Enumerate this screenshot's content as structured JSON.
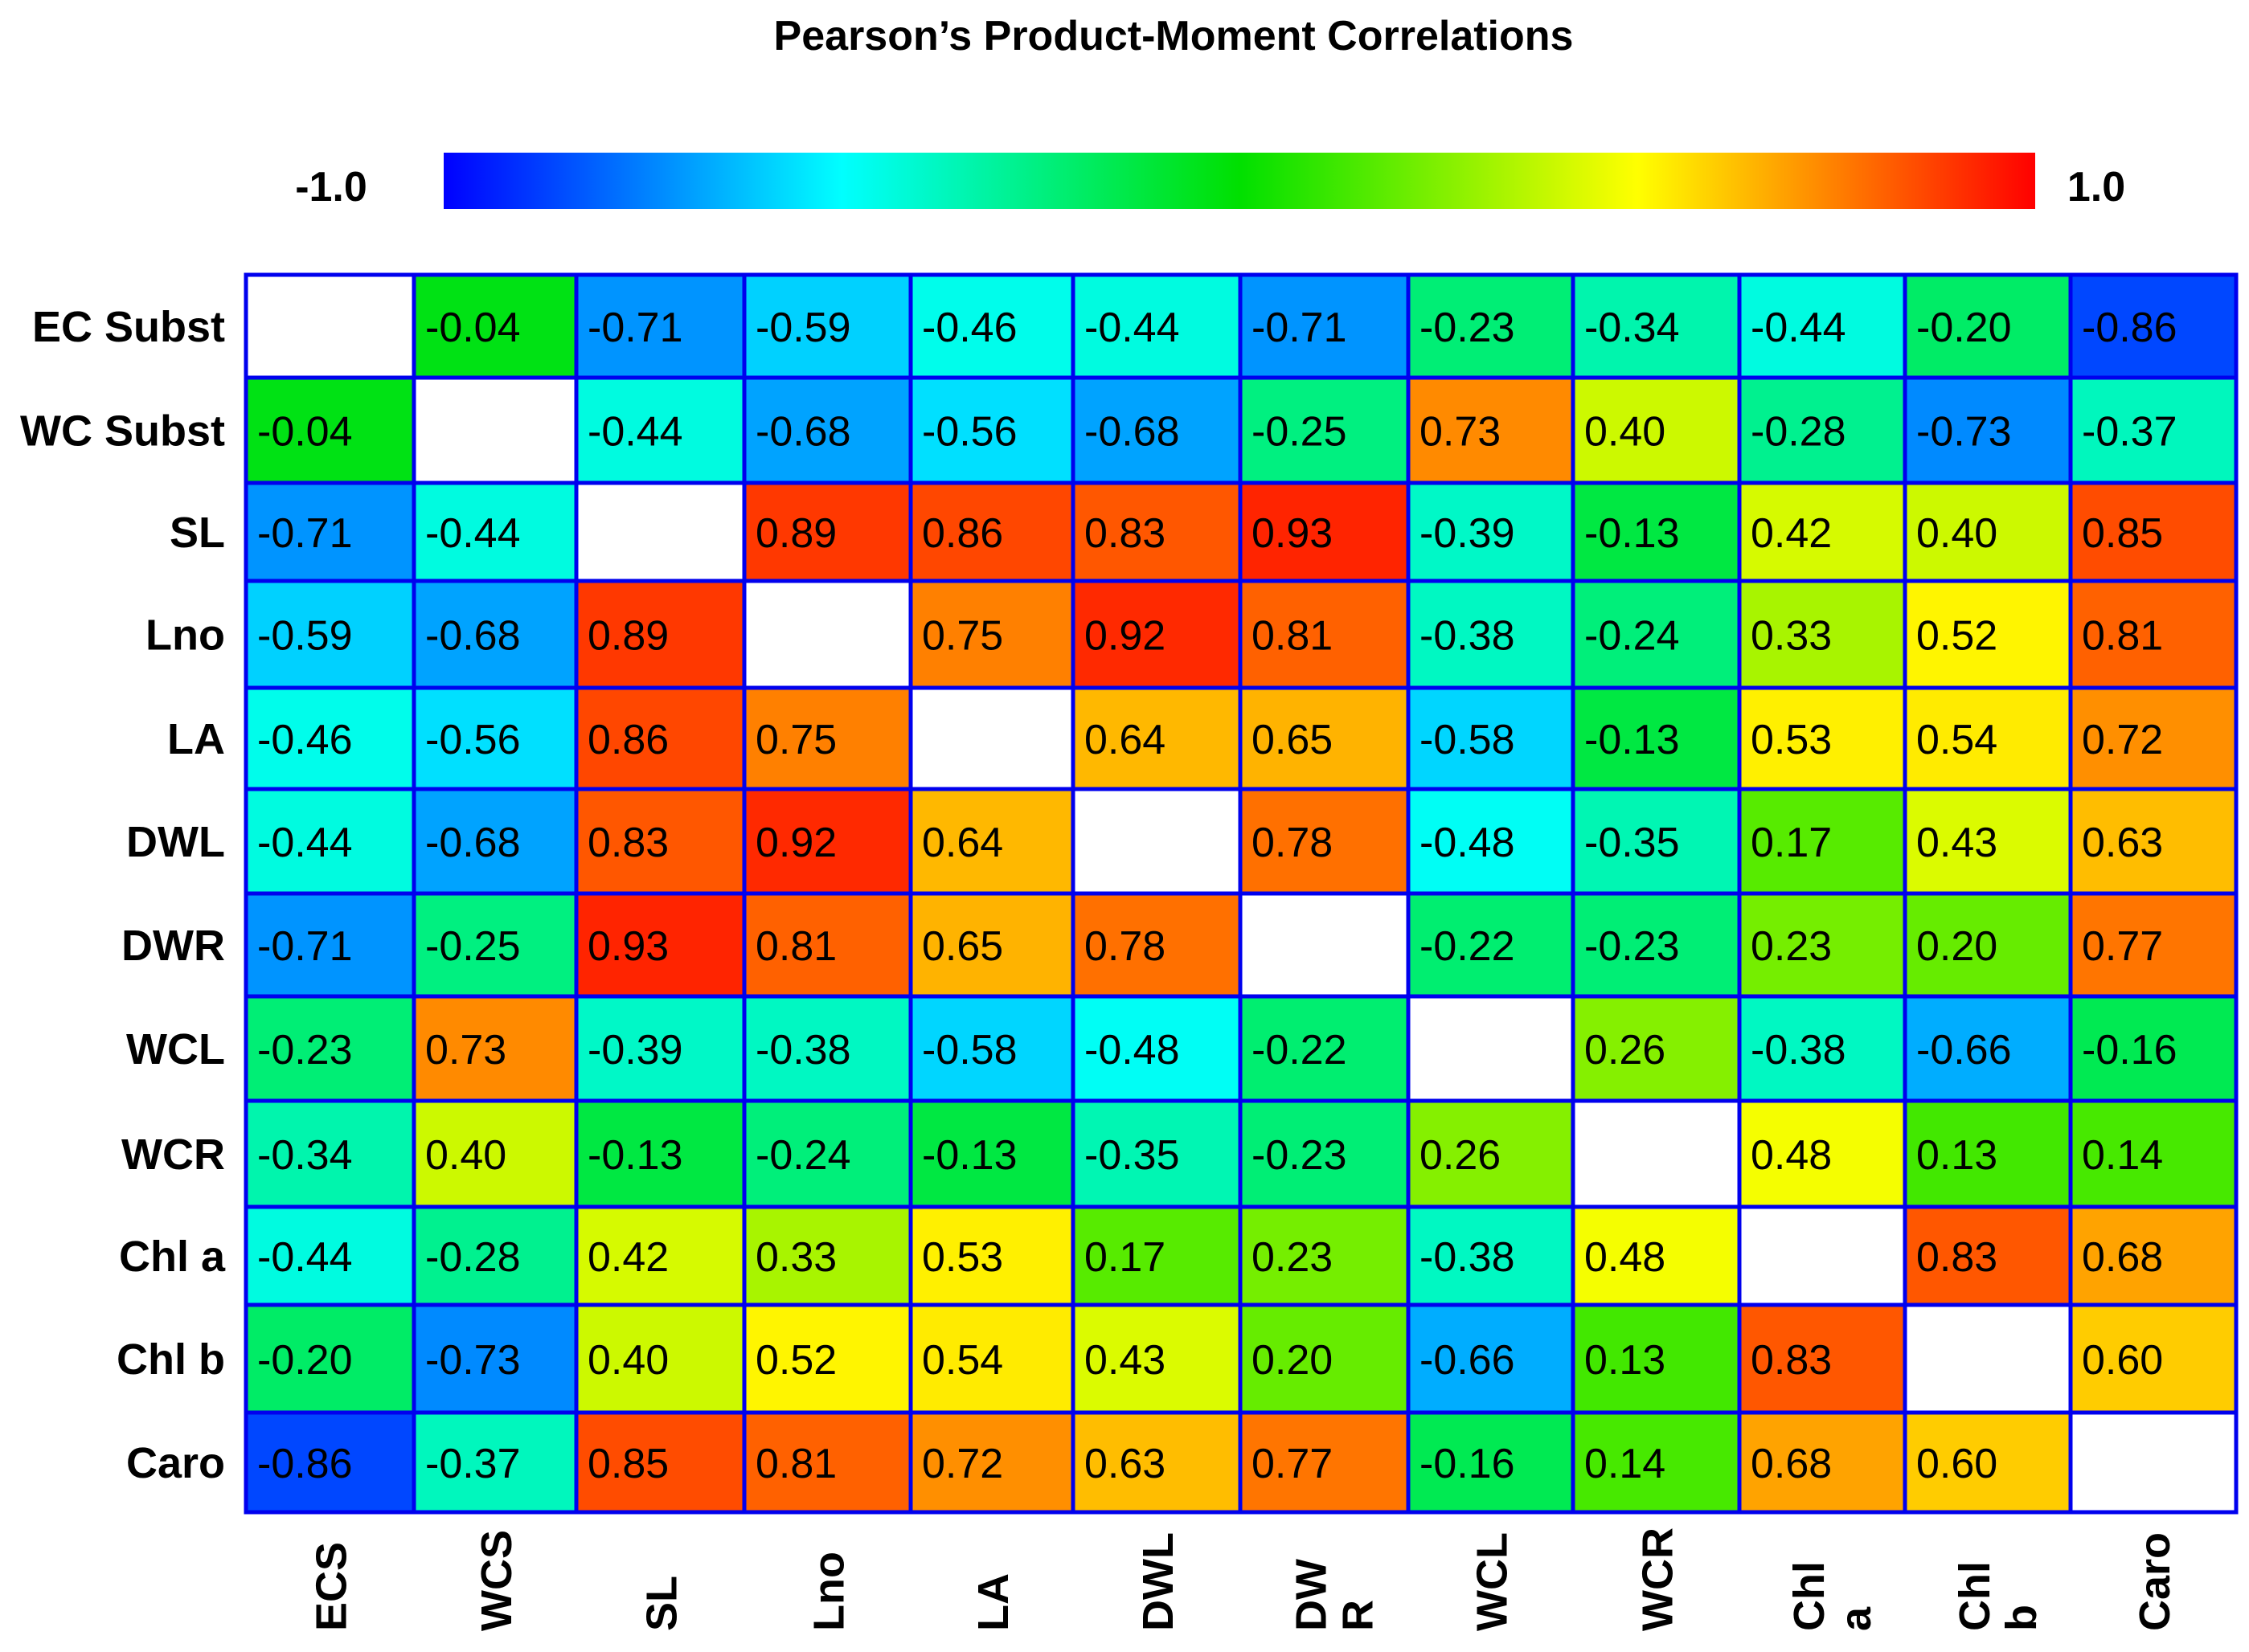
{
  "chart_data": {
    "type": "heatmap",
    "title": "Pearson’s  Product-Moment Correlations",
    "colorbar": {
      "min_label": "-1.0",
      "max_label": "1.0",
      "range": [
        -1.0,
        1.0
      ],
      "stops": [
        "#0000ff",
        "#00ffff",
        "#00e000",
        "#ffff00",
        "#ff0000"
      ]
    },
    "row_labels": [
      "EC Subst",
      "WC Subst",
      "SL",
      "Lno",
      "LA",
      "DWL",
      "DWR",
      "WCL",
      "WCR",
      "Chl a",
      "Chl b",
      "Caro"
    ],
    "column_labels": [
      "ECS",
      "WCS",
      "SL",
      "Lno",
      "LA",
      "DWL",
      "DW R",
      "WCL",
      "WCR",
      "Chl a",
      "Chl b",
      "Caro"
    ],
    "values": [
      [
        null,
        "-0.04",
        "-0.71",
        "-0.59",
        "-0.46",
        "-0.44",
        "-0.71",
        "-0.23",
        "-0.34",
        "-0.44",
        "-0.20",
        "-0.86"
      ],
      [
        "-0.04",
        null,
        "-0.44",
        "-0.68",
        "-0.56",
        "-0.68",
        "-0.25",
        "0.73",
        "0.40",
        "-0.28",
        "-0.73",
        "-0.37"
      ],
      [
        "-0.71",
        "-0.44",
        null,
        "0.89",
        "0.86",
        "0.83",
        "0.93",
        "-0.39",
        "-0.13",
        "0.42",
        "0.40",
        "0.85"
      ],
      [
        "-0.59",
        "-0.68",
        "0.89",
        null,
        "0.75",
        "0.92",
        "0.81",
        "-0.38",
        "-0.24",
        "0.33",
        "0.52",
        "0.81"
      ],
      [
        "-0.46",
        "-0.56",
        "0.86",
        "0.75",
        null,
        "0.64",
        "0.65",
        "-0.58",
        "-0.13",
        "0.53",
        "0.54",
        "0.72"
      ],
      [
        "-0.44",
        "-0.68",
        "0.83",
        "0.92",
        "0.64",
        null,
        "0.78",
        "-0.48",
        "-0.35",
        "0.17",
        "0.43",
        "0.63"
      ],
      [
        "-0.71",
        "-0.25",
        "0.93",
        "0.81",
        "0.65",
        "0.78",
        null,
        "-0.22",
        "-0.23",
        "0.23",
        "0.20",
        "0.77"
      ],
      [
        "-0.23",
        "0.73",
        "-0.39",
        "-0.38",
        "-0.58",
        "-0.48",
        "-0.22",
        null,
        "0.26",
        "-0.38",
        "-0.66",
        "-0.16"
      ],
      [
        "-0.34",
        "0.40",
        "-0.13",
        "-0.24",
        "-0.13",
        "-0.35",
        "-0.23",
        "0.26",
        null,
        "0.48",
        "0.13",
        "0.14"
      ],
      [
        "-0.44",
        "-0.28",
        "0.42",
        "0.33",
        "0.53",
        "0.17",
        "0.23",
        "-0.38",
        "0.48",
        null,
        "0.83",
        "0.68"
      ],
      [
        "-0.20",
        "-0.73",
        "0.40",
        "0.52",
        "0.54",
        "0.43",
        "0.20",
        "-0.66",
        "0.13",
        "0.83",
        null,
        "0.60"
      ],
      [
        "-0.86",
        "-0.37",
        "0.85",
        "0.81",
        "0.72",
        "0.63",
        "0.77",
        "-0.16",
        "0.14",
        "0.68",
        "0.60",
        null
      ]
    ],
    "grid_line_color": "#0000ee",
    "diagonal_color": "#ffffff"
  }
}
